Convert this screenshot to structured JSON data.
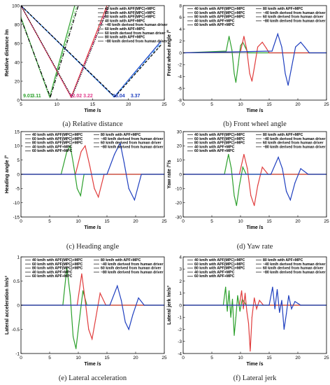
{
  "chart_data": [
    {
      "id": "a",
      "type": "line",
      "caption": "(a) Relative distance",
      "xlabel": "Time /s",
      "ylabel": "Relative distance /m",
      "xlim": [
        5,
        25
      ],
      "ylim": [
        0,
        100
      ],
      "xticks": [
        5,
        10,
        15,
        20,
        25
      ],
      "yticks": [
        0,
        20,
        40,
        60,
        80,
        100
      ],
      "grid": false,
      "legend_position": "top-right",
      "legend": [
        "40 km/h with APF(MPC)+MPC",
        "60 km/h with APF(MPC)+MPC",
        "80 km/h with APF(MPC)+MPC",
        "40 km/h with APF+MPC",
        "~40 km/h derived from human driver",
        "60 km/h with APF+MPC",
        "60 km/h derived from human driver",
        "80 km/h with APF+MPC",
        "~80 km/h derived from human driver"
      ],
      "annotations": [
        {
          "text": "9.01",
          "x": 5.3,
          "y": 3,
          "color": "#2ca02c"
        },
        {
          "text": "3.11",
          "x": 6.5,
          "y": 3,
          "color": "#2ca02c"
        },
        {
          "text": "12.02",
          "x": 11.8,
          "y": 3,
          "color": "#e03c8c"
        },
        {
          "text": "3.22",
          "x": 13.7,
          "y": 3,
          "color": "#e03c8c"
        },
        {
          "text": "18.04",
          "x": 17.8,
          "y": 3,
          "color": "#1f3fbf"
        },
        {
          "text": "3.37",
          "x": 20.3,
          "y": 3,
          "color": "#1f3fbf"
        }
      ],
      "series": [
        {
          "name": "80 km/h with APF(MPC)+MPC",
          "style": "solid",
          "color": "#2ca02c",
          "x": [
            5,
            9.0,
            12.5
          ],
          "y": [
            87,
            3.1,
            100
          ]
        },
        {
          "name": "80 km/h with APF+MPC",
          "style": "dashed",
          "color": "#7bd67b",
          "x": [
            5,
            9.0,
            12.8
          ],
          "y": [
            88,
            3.0,
            100
          ]
        },
        {
          "name": "~80 km/h derived from human driver",
          "style": "dashdot",
          "color": "#000000",
          "x": [
            5,
            9.1,
            13.0
          ],
          "y": [
            86,
            3.2,
            100
          ]
        },
        {
          "name": "60 km/h with APF(MPC)+MPC",
          "style": "solid",
          "color": "#e03c3c",
          "x": [
            5,
            12.0,
            17.0
          ],
          "y": [
            100,
            3.2,
            100
          ]
        },
        {
          "name": "60 km/h with APF+MPC",
          "style": "dashdot",
          "color": "#e03c8c",
          "x": [
            5,
            12.0,
            17.2
          ],
          "y": [
            100,
            3.2,
            100
          ]
        },
        {
          "name": "60 km/h derived from human driver",
          "style": "dotted",
          "color": "#000000",
          "x": [
            5,
            12.1,
            17.3
          ],
          "y": [
            100,
            3.3,
            100
          ]
        },
        {
          "name": "40 km/h with APF(MPC)+MPC",
          "style": "solid",
          "color": "#1f3fbf",
          "x": [
            5,
            18.0,
            24.5
          ],
          "y": [
            100,
            3.4,
            62
          ]
        },
        {
          "name": "40 km/h with APF+MPC",
          "style": "dashdot",
          "color": "#3fa0ff",
          "x": [
            5,
            18.0,
            24.5
          ],
          "y": [
            100,
            3.4,
            60
          ]
        },
        {
          "name": "~40 km/h derived from human driver",
          "style": "dashed",
          "color": "#000000",
          "x": [
            5,
            18.1,
            24.5
          ],
          "y": [
            100,
            3.5,
            58
          ]
        }
      ]
    },
    {
      "id": "b",
      "type": "line",
      "caption": "(b) Front wheel angle",
      "xlabel": "Time /s",
      "ylabel": "Front wheel angle /°",
      "xlim": [
        0,
        25
      ],
      "ylim": [
        -8,
        8
      ],
      "xticks": [
        0,
        5,
        10,
        15,
        20,
        25
      ],
      "yticks": [
        -8,
        -6,
        -4,
        -2,
        0,
        2,
        4,
        6,
        8
      ],
      "grid": false,
      "legend_position": "top",
      "legend": [
        "40 km/h with APF(MPC)+MPC",
        "60 km/h with APF(MPC)+MPC",
        "80 km/h with APF(MPC)+MPC",
        "40 km/h with APF+MPC",
        "60 km/h with APF+MPC",
        "80 km/h with APF+MPC",
        "~40 km/h derived from human driver",
        "60 km/h derived from human driver",
        "~80 km/h derived from human driver"
      ],
      "series": [
        {
          "name": "80 km/h with APF(MPC)+MPC",
          "color": "#2ca02c",
          "x": [
            0,
            7.5,
            8.0,
            8.5,
            8.9,
            9.2,
            9.6,
            10.0,
            10.4,
            10.8,
            11.3,
            25
          ],
          "y": [
            0,
            0.3,
            2.8,
            0.5,
            -3.5,
            -5.0,
            -2.0,
            1.2,
            1.8,
            1.0,
            0,
            0
          ]
        },
        {
          "name": "60 km/h with APF(MPC)+MPC",
          "color": "#e03c3c",
          "x": [
            0,
            10.0,
            10.6,
            11.1,
            11.6,
            12.0,
            12.5,
            13.0,
            13.8,
            14.5,
            15.0,
            25
          ],
          "y": [
            0,
            0.2,
            2.8,
            0.5,
            -3.5,
            -4.8,
            -2.0,
            1.0,
            1.8,
            0.8,
            0,
            0
          ]
        },
        {
          "name": "40 km/h with APF(MPC)+MPC",
          "color": "#1f3fbf",
          "x": [
            0,
            15.5,
            16.5,
            17.2,
            17.8,
            18.3,
            18.9,
            19.6,
            20.5,
            21.2,
            22.0,
            25
          ],
          "y": [
            0,
            0.3,
            3.2,
            1.0,
            -3.5,
            -5.5,
            -2.5,
            1.0,
            1.8,
            1.0,
            0,
            0
          ]
        }
      ]
    },
    {
      "id": "c",
      "type": "line",
      "caption": "(c) Heading angle",
      "xlabel": "Time /s",
      "ylabel": "Heading angle /°",
      "xlim": [
        0,
        25
      ],
      "ylim": [
        -15,
        15
      ],
      "xticks": [
        0,
        5,
        10,
        15,
        20,
        25
      ],
      "yticks": [
        -15,
        -10,
        -5,
        0,
        5,
        10,
        15
      ],
      "grid": false,
      "legend_position": "top",
      "legend": [
        "40 km/h with APF(MPC)+MPC",
        "60 km/h with APF(MPC)+MPC",
        "80 km/h with APF(MPC)+MPC",
        "40 km/h with APF+MPC",
        "60 km/h with APF+MPC",
        "80 km/h with APF+MPC",
        "~40 km/h derived from human driver",
        "60 km/h derived from human driver",
        "~80 km/h derived from human driver"
      ],
      "series": [
        {
          "name": "80 km/h with APF(MPC)+MPC",
          "color": "#2ca02c",
          "x": [
            0,
            7.0,
            8.0,
            8.6,
            9.2,
            9.8,
            10.4,
            11.0,
            25
          ],
          "y": [
            0,
            0,
            8.0,
            10.0,
            3.0,
            -5.0,
            -7.5,
            0,
            0
          ]
        },
        {
          "name": "60 km/h with APF(MPC)+MPC",
          "color": "#e03c3c",
          "x": [
            0,
            9.5,
            10.5,
            11.2,
            12.0,
            12.8,
            13.5,
            14.5,
            25
          ],
          "y": [
            0,
            0,
            8.0,
            10.0,
            3.0,
            -5.0,
            -8.0,
            0,
            0
          ]
        },
        {
          "name": "40 km/h with APF(MPC)+MPC",
          "color": "#1f3fbf",
          "x": [
            0,
            15.0,
            16.3,
            17.3,
            18.0,
            18.8,
            19.8,
            21.0,
            25
          ],
          "y": [
            0,
            0,
            7.0,
            11.0,
            4.0,
            -5.0,
            -9.0,
            0,
            0
          ]
        }
      ]
    },
    {
      "id": "d",
      "type": "line",
      "caption": "(d) Yaw rate",
      "xlabel": "Time /s",
      "ylabel": "Yaw rate /°/s",
      "xlim": [
        0,
        25
      ],
      "ylim": [
        -30,
        30
      ],
      "xticks": [
        0,
        5,
        10,
        15,
        20,
        25
      ],
      "yticks": [
        -30,
        -20,
        -10,
        0,
        10,
        20,
        30
      ],
      "grid": false,
      "legend_position": "top",
      "legend": [
        "40 km/h with APF(MPC)+MPC",
        "60 km/h with APF(MPC)+MPC",
        "80 km/h with APF(MPC)+MPC",
        "40 km/h with APF+MPC",
        "60 km/h with APF+MPC",
        "80 km/h with APF+MPC",
        "~40 km/h derived from human driver",
        "60 km/h derived from human driver",
        "~80 km/h derived from human driver"
      ],
      "series": [
        {
          "name": "80 km/h with APF(MPC)+MPC",
          "color": "#2ca02c",
          "x": [
            0,
            7.2,
            7.9,
            8.4,
            8.9,
            9.3,
            9.8,
            10.4,
            11.0,
            25
          ],
          "y": [
            0,
            0,
            14.0,
            4.0,
            -15.0,
            -22.0,
            -8.0,
            5.0,
            0,
            0
          ]
        },
        {
          "name": "60 km/h with APF(MPC)+MPC",
          "color": "#e03c3c",
          "x": [
            0,
            9.8,
            10.6,
            11.2,
            11.8,
            12.4,
            13.0,
            13.8,
            14.8,
            25
          ],
          "y": [
            0,
            0,
            14.0,
            4.0,
            -15.0,
            -22.0,
            -8.0,
            5.0,
            0,
            0
          ]
        },
        {
          "name": "40 km/h with APF(MPC)+MPC",
          "color": "#1f3fbf",
          "x": [
            0,
            15.3,
            16.6,
            17.3,
            18.0,
            18.7,
            19.5,
            20.5,
            21.8,
            25
          ],
          "y": [
            0,
            0,
            12.0,
            4.0,
            -12.0,
            -18.0,
            -6.0,
            4.0,
            0,
            0
          ]
        }
      ]
    },
    {
      "id": "e",
      "type": "line",
      "caption": "(e) Lateral acceleration",
      "xlabel": "Time /s",
      "ylabel": "Lateral acceleration /m/s²",
      "xlim": [
        0,
        25
      ],
      "ylim": [
        -1,
        1
      ],
      "xticks": [
        0,
        5,
        10,
        15,
        20,
        25
      ],
      "yticks": [
        -1,
        -0.5,
        0,
        0.5,
        1
      ],
      "grid": false,
      "legend_position": "top",
      "legend": [
        "40 km/h with APF(MPC)+MPC",
        "60 km/h with APF(MPC)+MPC",
        "80 km/h with APF(MPC)+MPC",
        "40 km/h with APF+MPC",
        "60 km/h with APF+MPC",
        "80 km/h with APF+MPC",
        "~40 km/h derived from human driver",
        "60 km/h derived from human driver",
        "~80 km/h derived from human driver"
      ],
      "series": [
        {
          "name": "80 km/h with APF(MPC)+MPC",
          "color": "#2ca02c",
          "x": [
            0,
            7.3,
            8.0,
            8.6,
            9.1,
            9.6,
            10.2,
            10.8,
            11.5,
            25
          ],
          "y": [
            0,
            0,
            0.78,
            0.2,
            -0.65,
            -0.9,
            -0.3,
            0.3,
            0,
            0
          ]
        },
        {
          "name": "60 km/h with APF(MPC)+MPC",
          "color": "#e03c3c",
          "x": [
            0,
            9.8,
            10.6,
            11.2,
            11.8,
            12.4,
            13.0,
            13.8,
            14.8,
            25
          ],
          "y": [
            0,
            0,
            0.65,
            0.1,
            -0.5,
            -0.7,
            -0.3,
            0.25,
            0,
            0
          ]
        },
        {
          "name": "40 km/h with APF(MPC)+MPC",
          "color": "#1f3fbf",
          "x": [
            0,
            15.5,
            16.8,
            17.5,
            18.2,
            18.8,
            19.5,
            20.5,
            21.5,
            25
          ],
          "y": [
            0,
            0,
            0.4,
            0.1,
            -0.35,
            -0.5,
            -0.2,
            0.15,
            0,
            0
          ]
        }
      ]
    },
    {
      "id": "f",
      "type": "line",
      "caption": "(f) Lateral jerk",
      "xlabel": "Time /s",
      "ylabel": "Lateral jerk /m/s³",
      "xlim": [
        0,
        25
      ],
      "ylim": [
        -4,
        4
      ],
      "xticks": [
        0,
        5,
        10,
        15,
        20,
        25
      ],
      "yticks": [
        -4,
        -3,
        -2,
        -1,
        0,
        1,
        2,
        3,
        4
      ],
      "grid": false,
      "legend_position": "top",
      "legend": [
        "40 km/h with APF(MPC)+MPC",
        "60 km/h with APF(MPC)+MPC",
        "80 km/h with APF(MPC)+MPC",
        "40 km/h with APF+MPC",
        "60 km/h with APF+MPC",
        "80 km/h with APF+MPC",
        "~40 km/h derived from human driver",
        "60 km/h derived from human driver",
        "~80 km/h derived from human driver"
      ],
      "series": [
        {
          "name": "80 km/h with APF(MPC)+MPC",
          "color": "#2ca02c",
          "x": [
            0,
            7.0,
            7.4,
            7.7,
            8.0,
            8.3,
            8.6,
            8.9,
            9.2,
            9.5,
            9.9,
            10.3,
            11.0,
            25
          ],
          "y": [
            0,
            0,
            1.5,
            -0.5,
            1.2,
            -1.0,
            0.5,
            -2.5,
            -1.0,
            0.8,
            -0.5,
            0.5,
            0,
            0
          ]
        },
        {
          "name": "60 km/h with APF(MPC)+MPC",
          "color": "#e03c3c",
          "x": [
            0,
            9.8,
            10.2,
            10.5,
            10.8,
            11.1,
            11.4,
            11.7,
            12.0,
            12.4,
            12.8,
            13.3,
            14.0,
            25
          ],
          "y": [
            0,
            0,
            1.2,
            -0.3,
            1.0,
            -0.5,
            -1.5,
            -3.8,
            -1.0,
            0.6,
            -0.3,
            0.4,
            0,
            0
          ]
        },
        {
          "name": "40 km/h with APF(MPC)+MPC",
          "color": "#1f3fbf",
          "x": [
            0,
            15.0,
            15.6,
            16.0,
            16.4,
            16.8,
            17.2,
            17.6,
            18.0,
            18.4,
            18.9,
            19.5,
            20.5,
            25
          ],
          "y": [
            0,
            0,
            1.5,
            -0.3,
            1.3,
            -0.6,
            0.4,
            -2.0,
            -0.7,
            0.8,
            -0.3,
            0.3,
            0,
            0
          ]
        }
      ]
    }
  ]
}
